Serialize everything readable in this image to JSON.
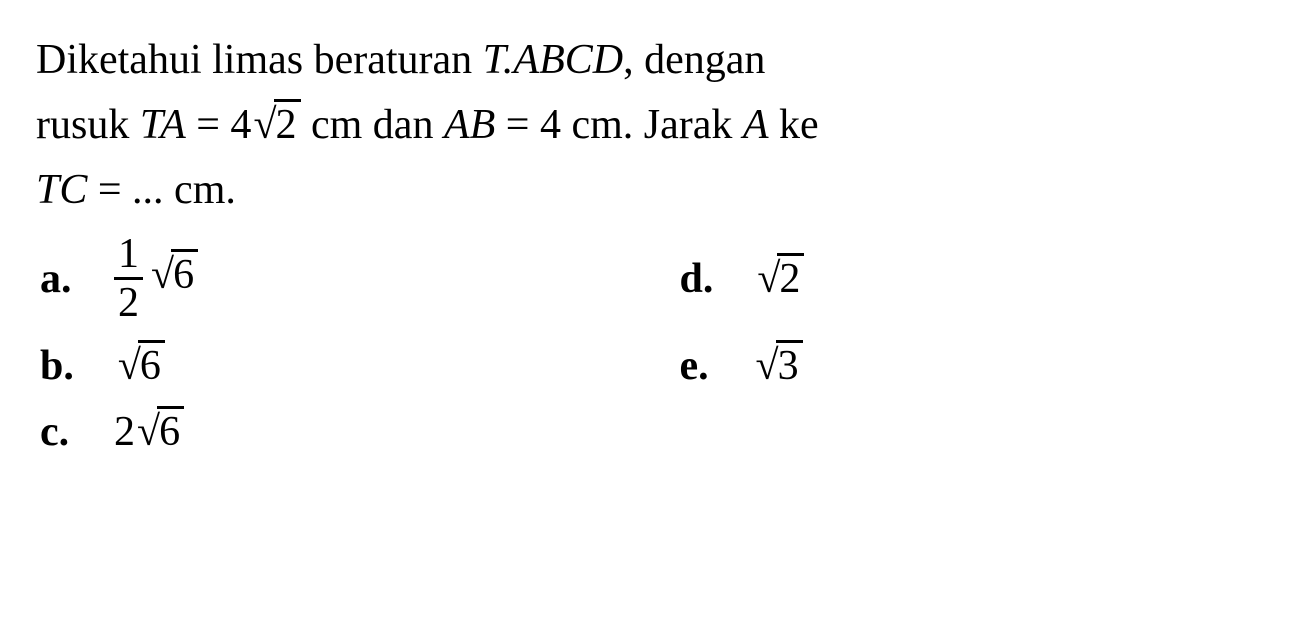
{
  "question": {
    "line1_prefix": "Diketahui limas beraturan ",
    "ital_tabcd": "T.ABCD",
    "line1_suffix": ", dengan",
    "line2_prefix": "rusuk ",
    "ital_ta": "TA",
    "eq1": " = 4",
    "sqrt2_a": "2",
    "line2_mid": " cm dan ",
    "ital_ab": "AB",
    "eq2": " = 4 cm. Jarak ",
    "ital_a": "A",
    "line2_end": " ke",
    "ital_tc": "TC",
    "line3_suffix": " = ... cm."
  },
  "options": {
    "a": {
      "label": "a.",
      "num": "1",
      "den": "2",
      "rad": "6"
    },
    "b": {
      "label": "b.",
      "rad": "6"
    },
    "c": {
      "label": "c.",
      "coef": "2",
      "rad": "6"
    },
    "d": {
      "label": "d.",
      "rad": "2"
    },
    "e": {
      "label": "e.",
      "rad": "3"
    }
  },
  "styling": {
    "font_family": "Times New Roman",
    "font_size_pt": 32,
    "background_color": "#ffffff",
    "text_color": "#000000",
    "surd_symbol": "√"
  }
}
